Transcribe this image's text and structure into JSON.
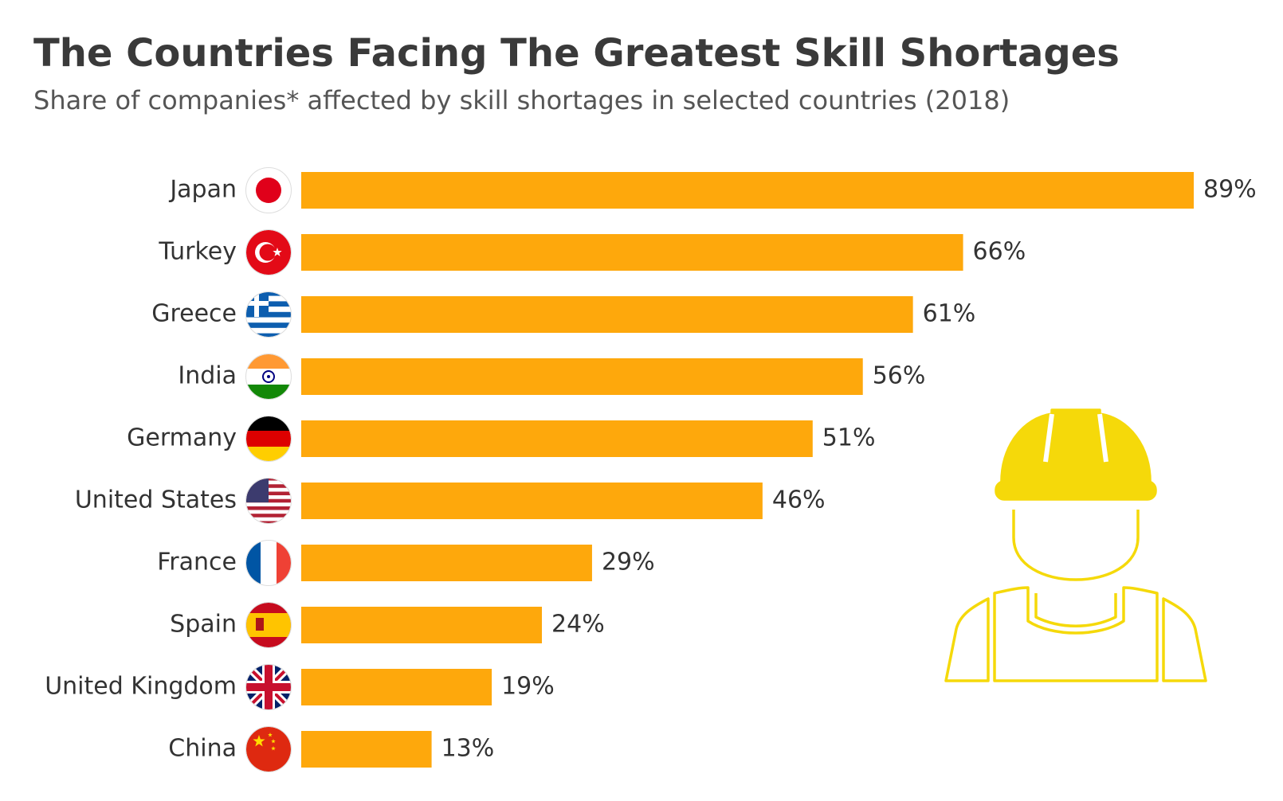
{
  "chart_data": {
    "type": "bar",
    "orientation": "horizontal",
    "title": "The Countries Facing The Greatest Skill Shortages",
    "subtitle": "Share of companies* affected by skill shortages in selected countries (2018)",
    "categories": [
      "Japan",
      "Turkey",
      "Greece",
      "India",
      "Germany",
      "United States",
      "France",
      "Spain",
      "United Kingdom",
      "China"
    ],
    "values": [
      89,
      66,
      61,
      56,
      51,
      46,
      29,
      24,
      19,
      13
    ],
    "value_labels": [
      "89%",
      "66%",
      "61%",
      "56%",
      "51%",
      "46%",
      "29%",
      "24%",
      "19%",
      "13%"
    ],
    "color": "#fea80c"
  }
}
